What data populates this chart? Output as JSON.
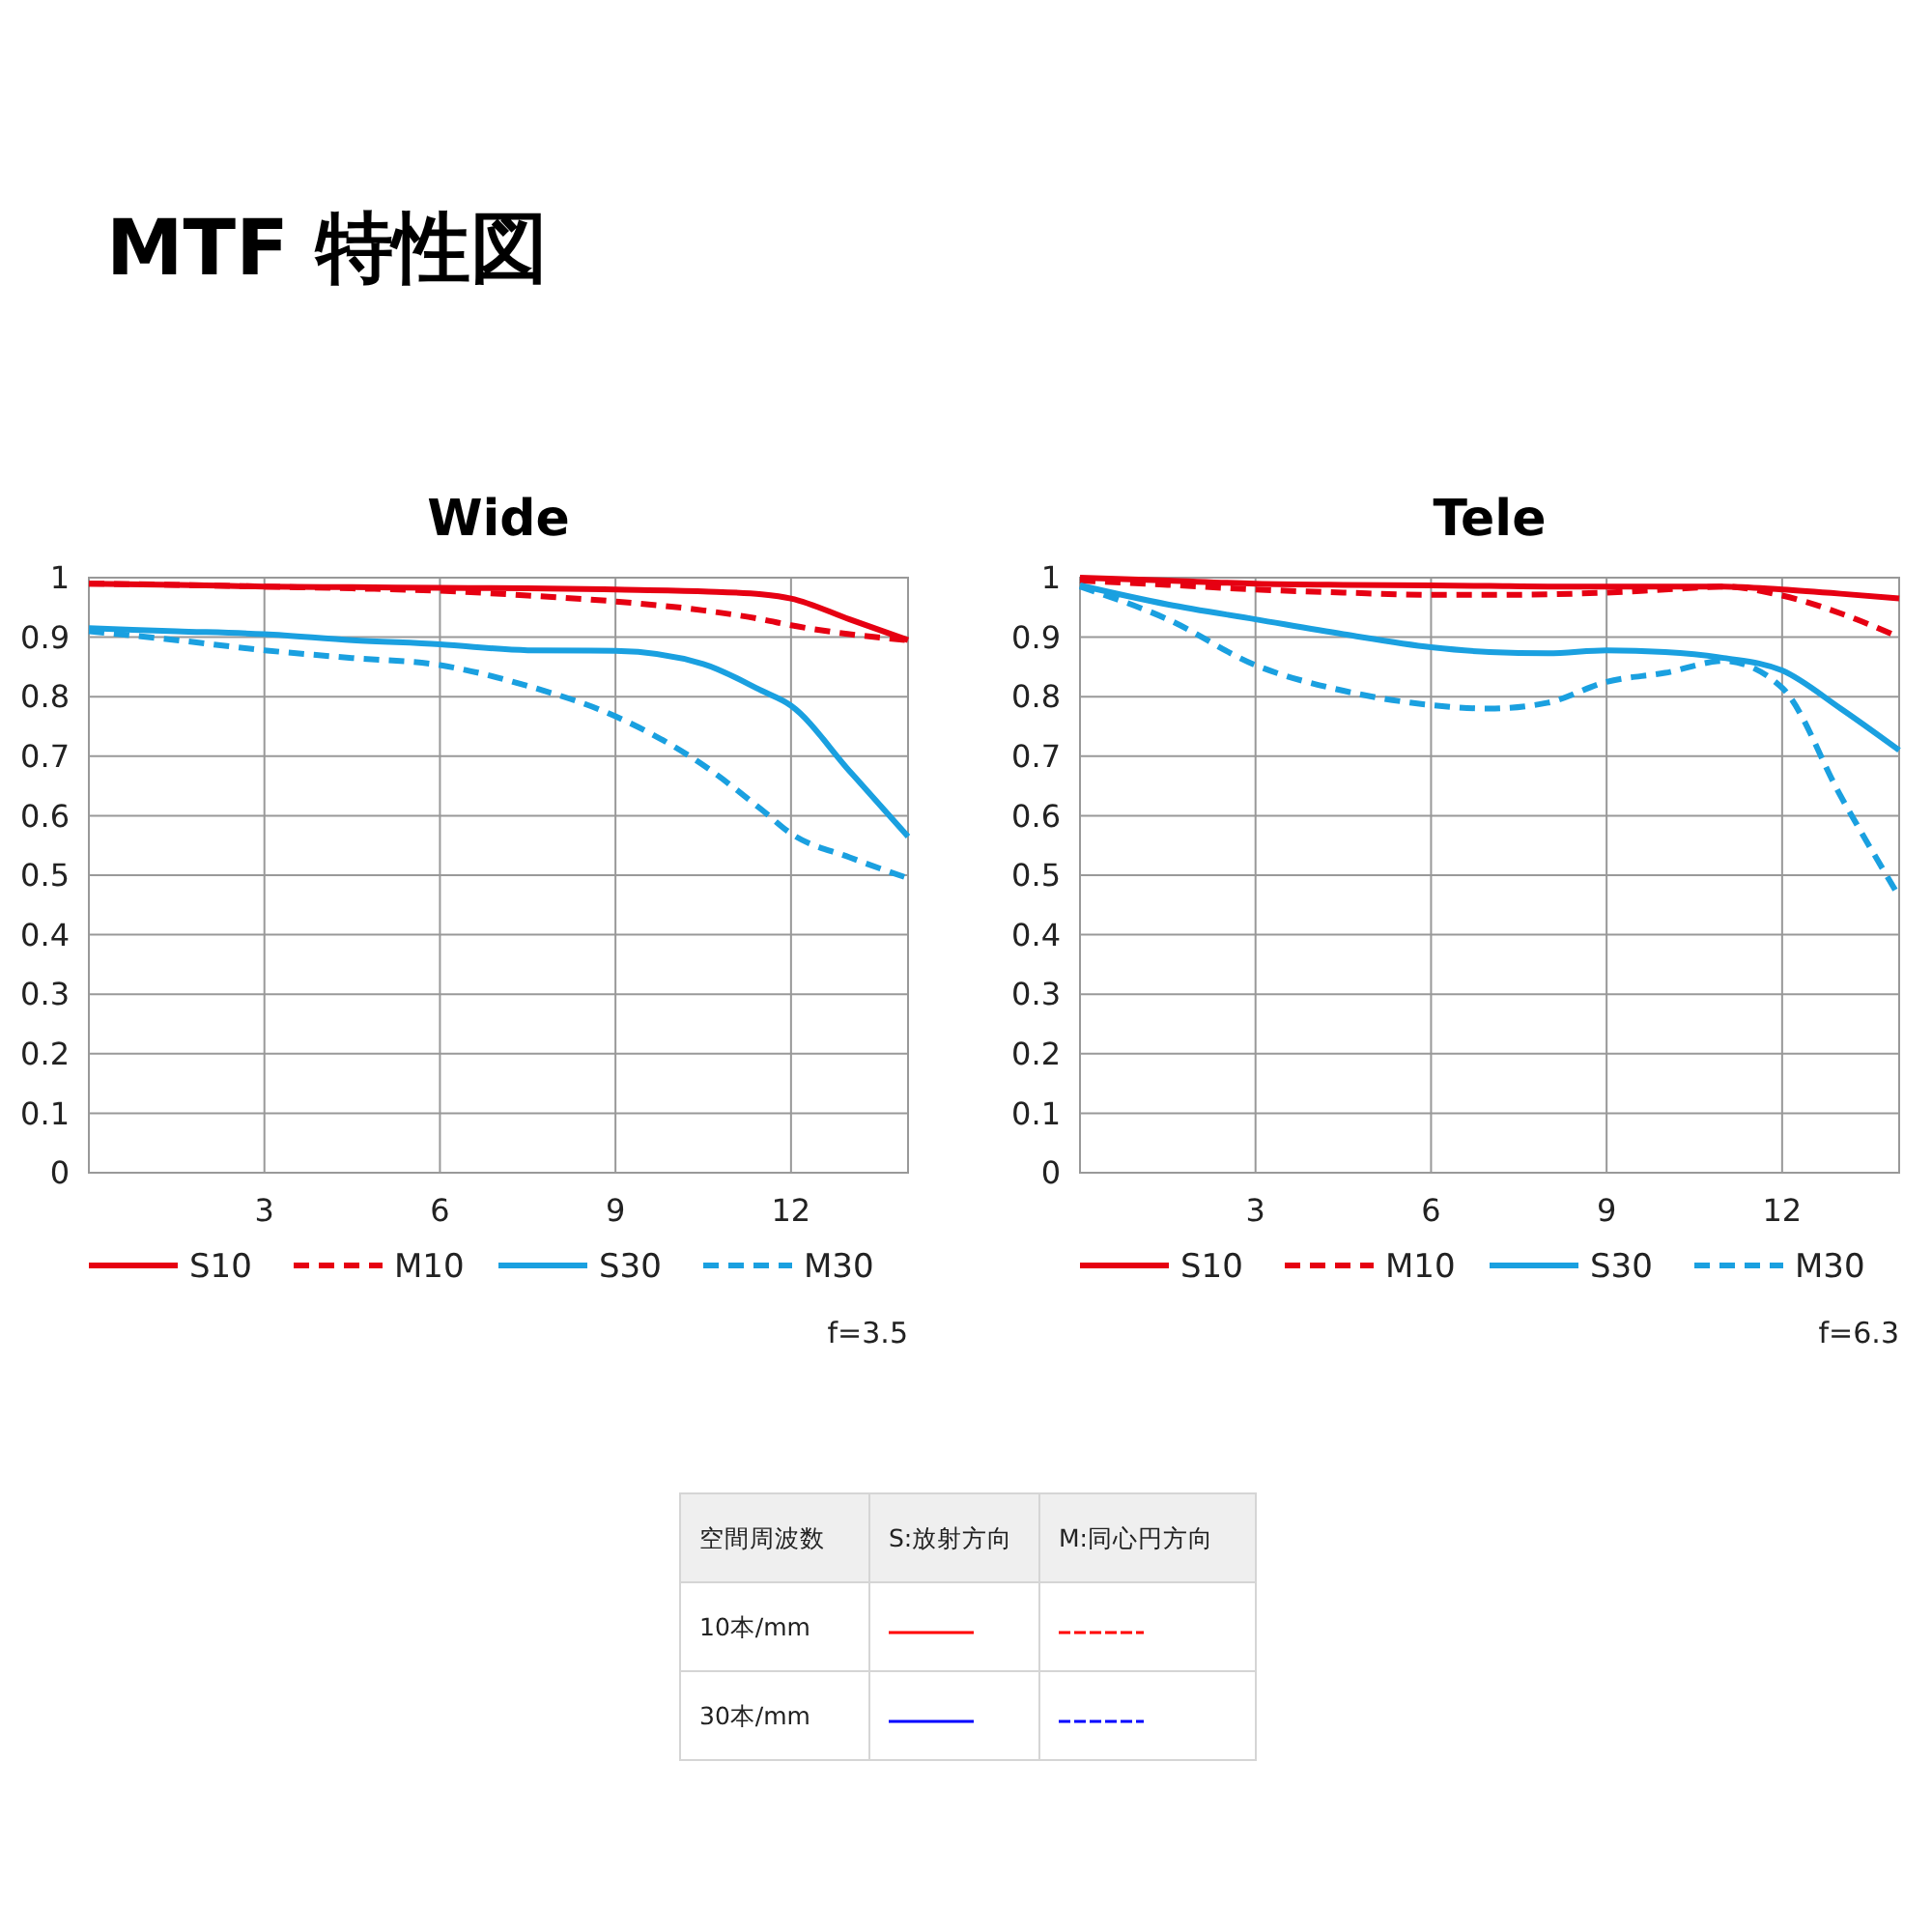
{
  "chart_data": [
    {
      "type": "other",
      "title": "MTF 特性図"
    },
    {
      "type": "line",
      "title": "Wide",
      "x": [
        0,
        1.5,
        3,
        4.5,
        6,
        7.5,
        9,
        10.5,
        11.5,
        12,
        13,
        14
      ],
      "xlim": [
        0,
        14
      ],
      "xticks": [
        3,
        6,
        9,
        12
      ],
      "ylim": [
        0,
        1
      ],
      "yticks": [
        0,
        0.1,
        0.2,
        0.3,
        0.4,
        0.5,
        0.6,
        0.7,
        0.8,
        0.9,
        1
      ],
      "grid": true,
      "legend": "bottom",
      "marker": "none",
      "annotations": [
        "f=3.5"
      ],
      "series": [
        {
          "name": "S10",
          "color": "#e60012",
          "line_style": "solid",
          "values": [
            0.99,
            0.988,
            0.985,
            0.984,
            0.983,
            0.982,
            0.98,
            0.977,
            0.972,
            0.965,
            0.93,
            0.895
          ]
        },
        {
          "name": "M10",
          "color": "#e60012",
          "line_style": "dashed",
          "values": [
            0.99,
            0.988,
            0.985,
            0.982,
            0.978,
            0.97,
            0.96,
            0.945,
            0.93,
            0.92,
            0.905,
            0.895
          ]
        },
        {
          "name": "S30",
          "color": "#1aa0e0",
          "line_style": "solid",
          "values": [
            0.915,
            0.91,
            0.905,
            0.895,
            0.888,
            0.878,
            0.877,
            0.855,
            0.81,
            0.785,
            0.675,
            0.565
          ]
        },
        {
          "name": "M30",
          "color": "#1aa0e0",
          "line_style": "dashed",
          "values": [
            0.91,
            0.895,
            0.878,
            0.865,
            0.853,
            0.818,
            0.767,
            0.685,
            0.61,
            0.57,
            0.53,
            0.495
          ]
        }
      ]
    },
    {
      "type": "line",
      "title": "Tele",
      "x": [
        0,
        1.5,
        3,
        4.5,
        6,
        7,
        8,
        9,
        10,
        11,
        12,
        13,
        14
      ],
      "xlim": [
        0,
        14
      ],
      "xticks": [
        3,
        6,
        9,
        12
      ],
      "ylim": [
        0,
        1
      ],
      "yticks": [
        0,
        0.1,
        0.2,
        0.3,
        0.4,
        0.5,
        0.6,
        0.7,
        0.8,
        0.9,
        1
      ],
      "grid": true,
      "legend": "bottom",
      "marker": "none",
      "annotations": [
        "f=6.3"
      ],
      "series": [
        {
          "name": "S10",
          "color": "#e60012",
          "line_style": "solid",
          "values": [
            1.0,
            0.995,
            0.99,
            0.988,
            0.987,
            0.986,
            0.985,
            0.985,
            0.985,
            0.985,
            0.98,
            0.973,
            0.965
          ]
        },
        {
          "name": "M10",
          "color": "#e60012",
          "line_style": "dashed",
          "values": [
            0.995,
            0.988,
            0.98,
            0.975,
            0.971,
            0.971,
            0.972,
            0.975,
            0.98,
            0.985,
            0.97,
            0.94,
            0.9
          ]
        },
        {
          "name": "S30",
          "color": "#1aa0e0",
          "line_style": "solid",
          "values": [
            0.987,
            0.955,
            0.93,
            0.905,
            0.883,
            0.875,
            0.873,
            0.878,
            0.875,
            0.865,
            0.844,
            0.78,
            0.71
          ]
        },
        {
          "name": "M30",
          "color": "#1aa0e0",
          "line_style": "dashed",
          "values": [
            0.985,
            0.93,
            0.853,
            0.81,
            0.786,
            0.78,
            0.79,
            0.825,
            0.84,
            0.86,
            0.815,
            0.633,
            0.464
          ]
        }
      ]
    },
    {
      "type": "other",
      "legend_title": "空間周波数",
      "categories": [
        "10本/mm",
        "30本/mm"
      ],
      "colors": [
        "#ff0000",
        "#0000ff"
      ],
      "annotations": [
        "S:放射方向",
        "M:同心円方向"
      ]
    }
  ]
}
